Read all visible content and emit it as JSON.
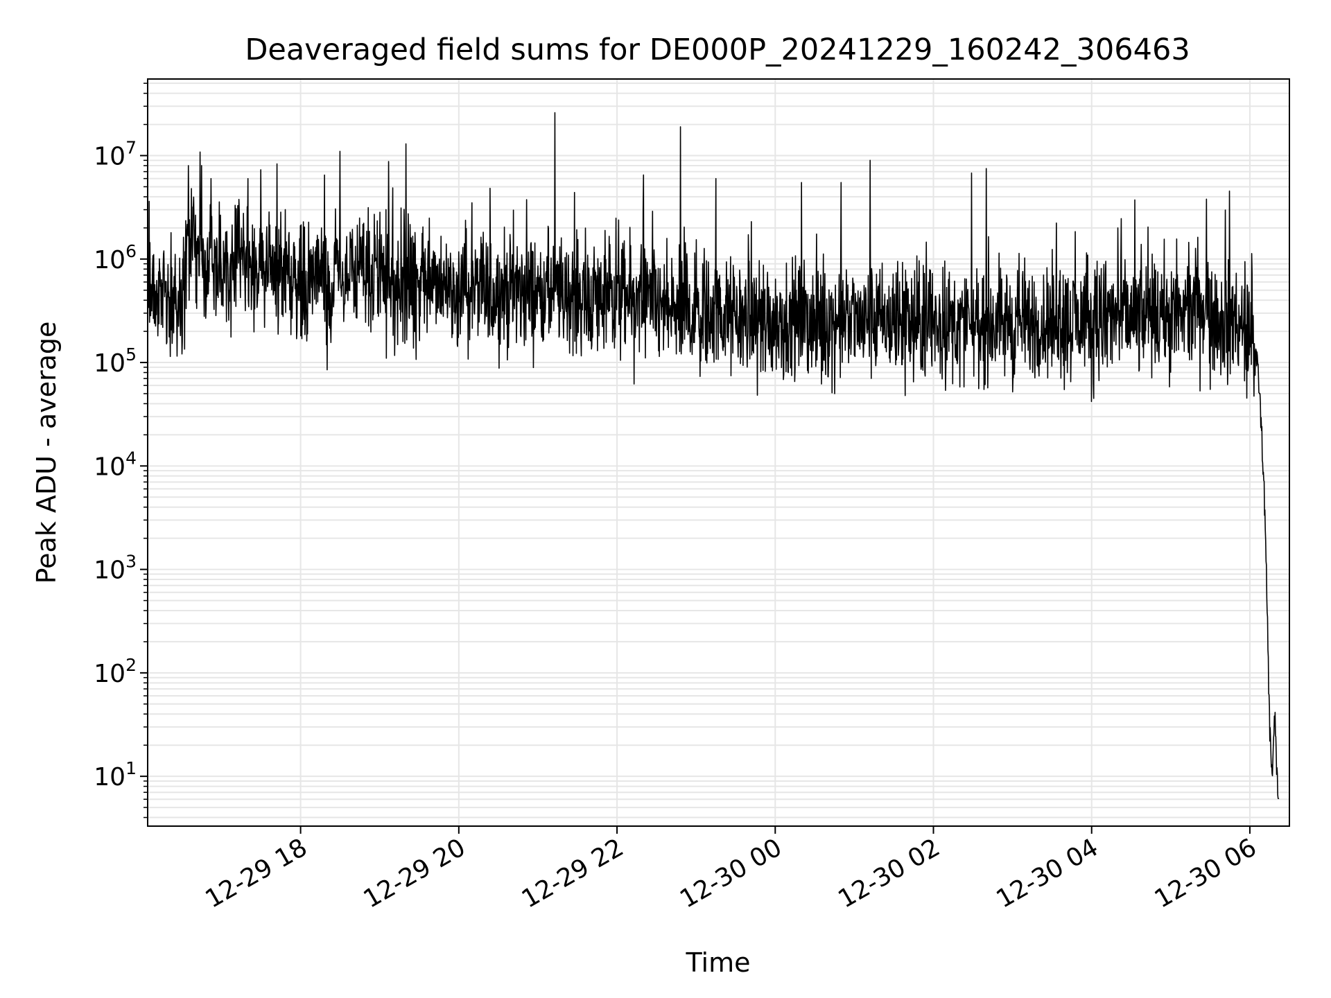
{
  "chart_data": {
    "type": "line",
    "title": "Deaveraged field sums for DE000P_20241229_160242_306463",
    "xlabel": "Time",
    "ylabel": "Peak ADU - average",
    "yscale": "log",
    "grid": true,
    "legend": "none",
    "line_color": "#000000",
    "grid_color": "#e6e6e6",
    "xlim": [
      "2024-12-29 16:04",
      "2024-12-30 06:30"
    ],
    "ylim": [
      3.3,
      55000000
    ],
    "x_ticks": [
      {
        "value": "2024-12-29 18:00",
        "label": "12-29 18"
      },
      {
        "value": "2024-12-29 20:00",
        "label": "12-29 20"
      },
      {
        "value": "2024-12-29 22:00",
        "label": "12-29 22"
      },
      {
        "value": "2024-12-30 00:00",
        "label": "12-30 00"
      },
      {
        "value": "2024-12-30 02:00",
        "label": "12-30 02"
      },
      {
        "value": "2024-12-30 04:00",
        "label": "12-30 04"
      },
      {
        "value": "2024-12-30 06:00",
        "label": "12-30 06"
      }
    ],
    "y_ticks": [
      {
        "value": 10,
        "base": "10",
        "exp": "1"
      },
      {
        "value": 100,
        "base": "10",
        "exp": "2"
      },
      {
        "value": 1000,
        "base": "10",
        "exp": "3"
      },
      {
        "value": 10000,
        "base": "10",
        "exp": "4"
      },
      {
        "value": 100000,
        "base": "10",
        "exp": "5"
      },
      {
        "value": 1000000,
        "base": "10",
        "exp": "6"
      },
      {
        "value": 10000000,
        "base": "10",
        "exp": "7"
      }
    ],
    "series": [
      {
        "x": [
          "2024-12-29 16:04",
          "2024-12-29 16:10",
          "2024-12-29 16:20",
          "2024-12-29 16:30",
          "2024-12-29 16:35",
          "2024-12-29 16:40",
          "2024-12-29 16:45",
          "2024-12-29 16:50",
          "2024-12-29 17:00",
          "2024-12-29 17:10",
          "2024-12-29 17:20",
          "2024-12-29 17:30",
          "2024-12-29 17:40",
          "2024-12-29 17:50",
          "2024-12-29 18:00",
          "2024-12-29 18:15",
          "2024-12-29 18:30",
          "2024-12-29 18:45",
          "2024-12-29 19:00",
          "2024-12-29 19:15",
          "2024-12-29 19:30",
          "2024-12-29 19:45",
          "2024-12-29 20:00",
          "2024-12-29 20:15",
          "2024-12-29 20:30",
          "2024-12-29 20:45",
          "2024-12-29 21:00",
          "2024-12-29 21:15",
          "2024-12-29 21:30",
          "2024-12-29 21:45",
          "2024-12-29 22:00",
          "2024-12-29 22:15",
          "2024-12-29 22:30",
          "2024-12-29 22:45",
          "2024-12-29 23:00",
          "2024-12-29 23:15",
          "2024-12-29 23:30",
          "2024-12-29 23:45",
          "2024-12-30 00:00",
          "2024-12-30 00:15",
          "2024-12-30 00:30",
          "2024-12-30 00:45",
          "2024-12-30 01:00",
          "2024-12-30 01:15",
          "2024-12-30 01:30",
          "2024-12-30 01:45",
          "2024-12-30 02:00",
          "2024-12-30 02:15",
          "2024-12-30 02:30",
          "2024-12-30 02:45",
          "2024-12-30 03:00",
          "2024-12-30 03:15",
          "2024-12-30 03:30",
          "2024-12-30 03:45",
          "2024-12-30 04:00",
          "2024-12-30 04:15",
          "2024-12-30 04:30",
          "2024-12-30 04:45",
          "2024-12-30 05:00",
          "2024-12-30 05:15",
          "2024-12-30 05:30",
          "2024-12-30 05:45",
          "2024-12-30 05:55",
          "2024-12-30 06:00",
          "2024-12-30 06:04",
          "2024-12-30 06:07",
          "2024-12-30 06:09",
          "2024-12-30 06:11",
          "2024-12-30 06:13",
          "2024-12-30 06:15",
          "2024-12-30 06:17",
          "2024-12-30 06:19",
          "2024-12-30 06:21",
          "2024-12-30 06:22"
        ],
        "y": [
          450000,
          480000,
          420000,
          400000,
          1500000,
          1300000,
          1000000,
          900000,
          850000,
          950000,
          1000000,
          900000,
          800000,
          700000,
          600000,
          650000,
          700000,
          620000,
          600000,
          580000,
          560000,
          550000,
          520000,
          500000,
          480000,
          470000,
          460000,
          450000,
          440000,
          430000,
          420000,
          380000,
          330000,
          300000,
          290000,
          280000,
          270000,
          265000,
          260000,
          255000,
          250000,
          248000,
          245000,
          240000,
          238000,
          235000,
          232000,
          235000,
          238000,
          240000,
          242000,
          245000,
          248000,
          250000,
          255000,
          260000,
          265000,
          270000,
          280000,
          290000,
          300000,
          250000,
          200000,
          180000,
          150000,
          60000,
          20000,
          5000,
          500,
          30,
          10,
          40,
          7,
          5
        ]
      }
    ],
    "spikes": [
      {
        "x": "2024-12-29 16:35",
        "y": 8000000
      },
      {
        "x": "2024-12-29 16:45",
        "y": 8000000
      },
      {
        "x": "2024-12-29 16:52",
        "y": 6000000
      },
      {
        "x": "2024-12-29 17:20",
        "y": 6000000
      },
      {
        "x": "2024-12-29 18:30",
        "y": 11000000
      },
      {
        "x": "2024-12-29 19:20",
        "y": 13000000
      },
      {
        "x": "2024-12-29 20:10",
        "y": 3500000
      },
      {
        "x": "2024-12-29 21:13",
        "y": 26000000
      },
      {
        "x": "2024-12-29 22:20",
        "y": 6500000
      },
      {
        "x": "2024-12-29 22:48",
        "y": 19000000
      },
      {
        "x": "2024-12-29 23:15",
        "y": 6000000
      },
      {
        "x": "2024-12-30 00:20",
        "y": 5500000
      },
      {
        "x": "2024-12-30 00:50",
        "y": 5500000
      },
      {
        "x": "2024-12-30 01:12",
        "y": 9000000
      },
      {
        "x": "2024-12-30 02:40",
        "y": 7500000
      },
      {
        "x": "2024-12-30 04:20",
        "y": 2000000
      },
      {
        "x": "2024-12-30 05:27",
        "y": 3800000
      }
    ],
    "dips": [
      {
        "x": "2024-12-29 18:20",
        "y": 85000
      },
      {
        "x": "2024-12-29 19:05",
        "y": 110000
      },
      {
        "x": "2024-12-29 22:13",
        "y": 62000
      },
      {
        "x": "2024-12-30 00:35",
        "y": 62000
      },
      {
        "x": "2024-12-30 01:45",
        "y": 65000
      },
      {
        "x": "2024-12-30 02:20",
        "y": 58000
      },
      {
        "x": "2024-12-30 03:00",
        "y": 52000
      },
      {
        "x": "2024-12-30 04:00",
        "y": 42000
      },
      {
        "x": "2024-12-30 05:30",
        "y": 55000
      }
    ]
  }
}
